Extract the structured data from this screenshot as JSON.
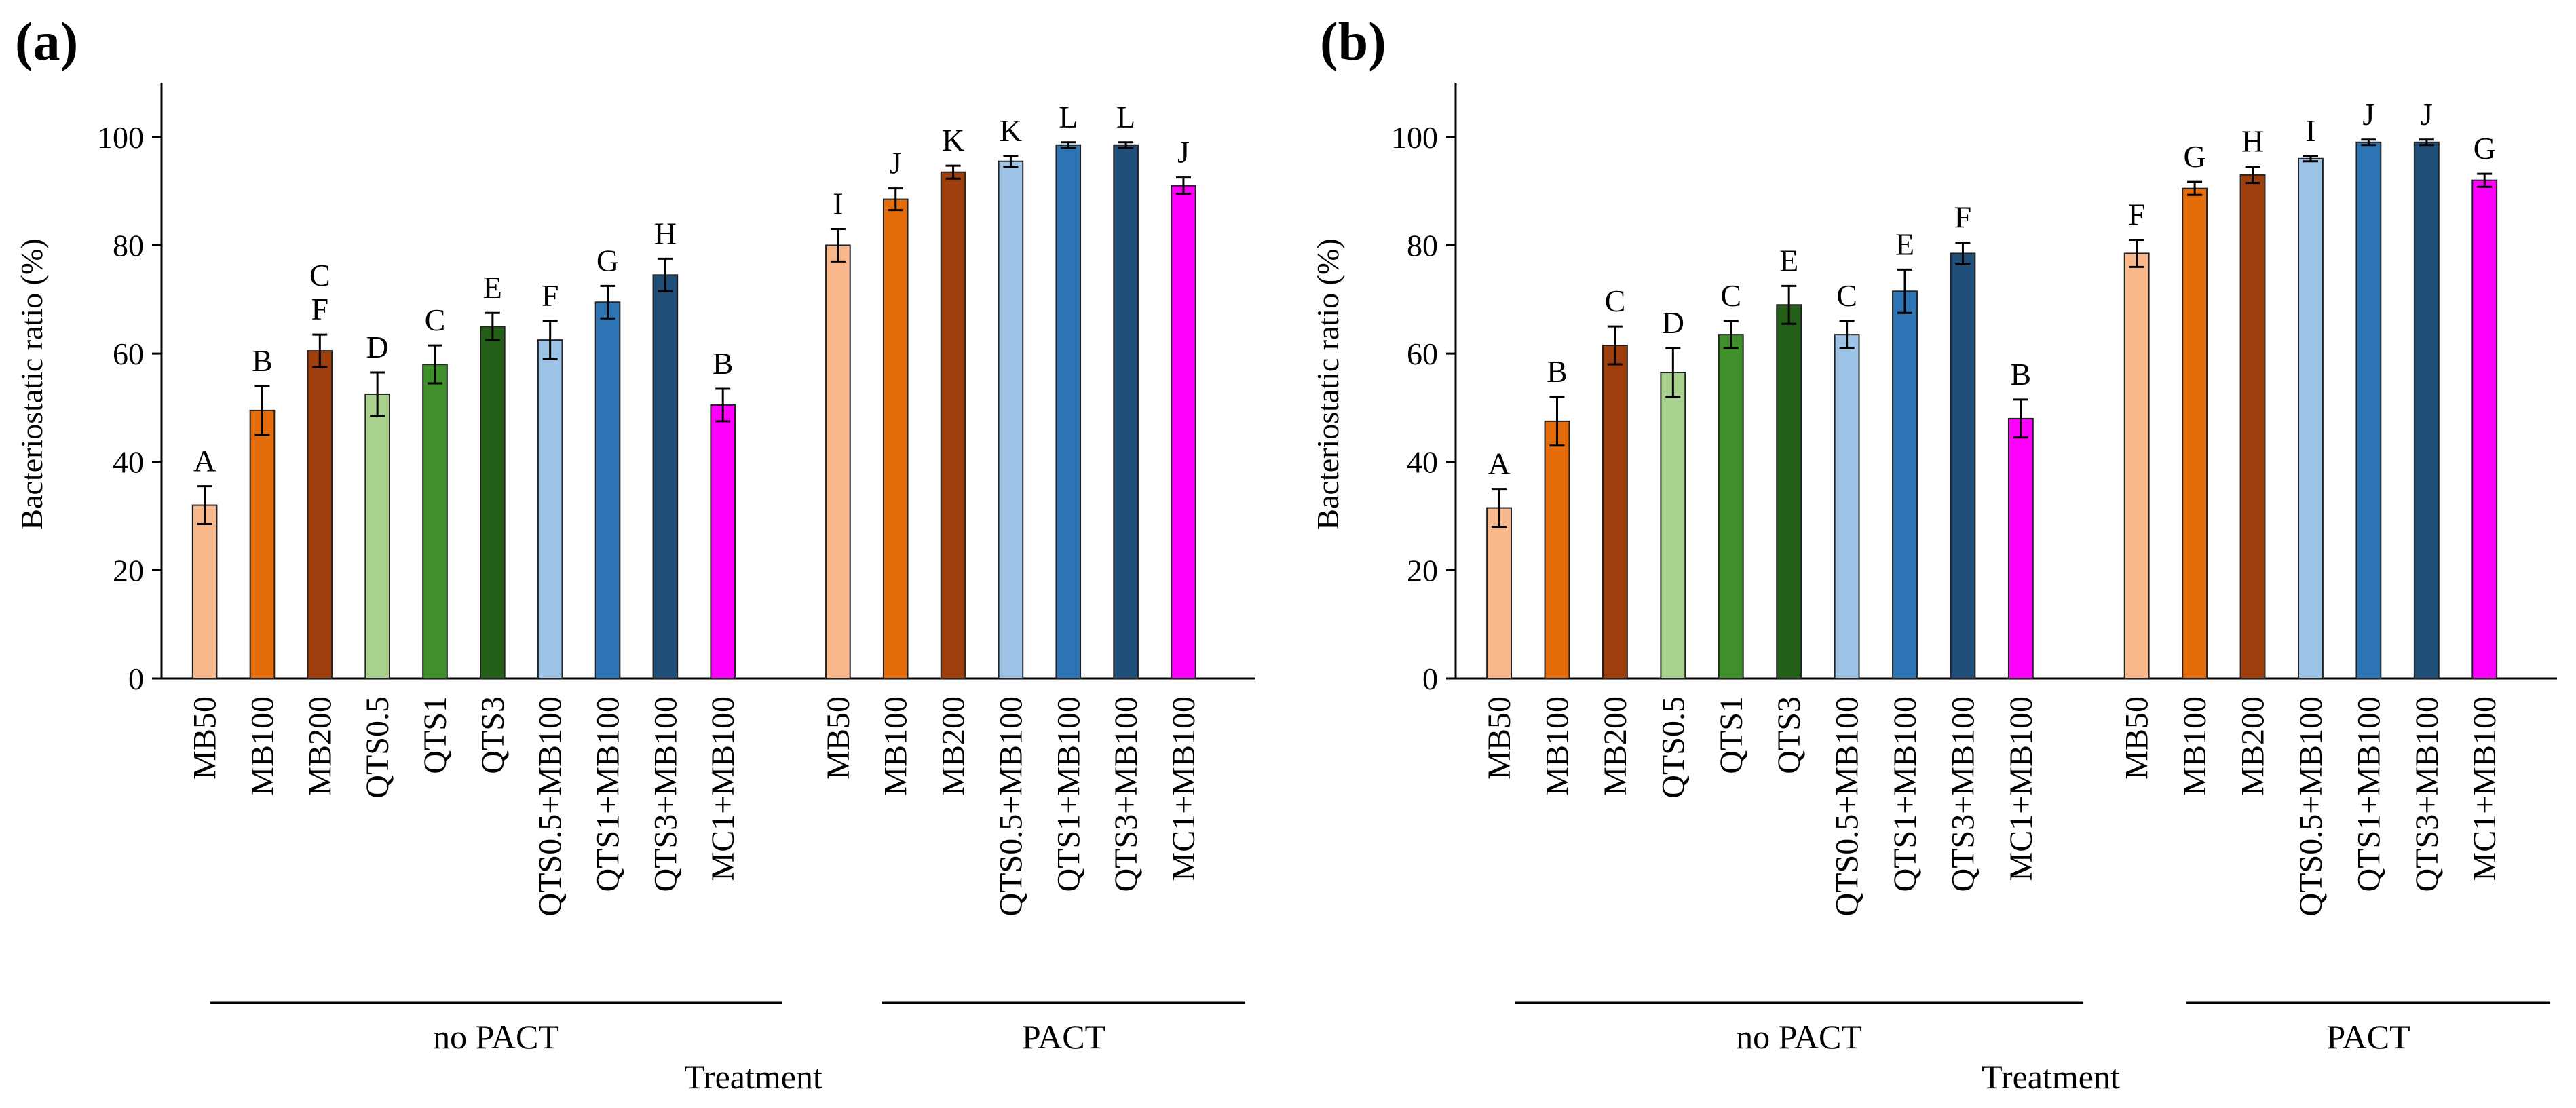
{
  "chart_data": [
    {
      "type": "bar",
      "panel_label": "(a)",
      "ylabel": "Bacteriostatic ratio (%)",
      "xlabel": "Treatment",
      "ylim": [
        0,
        110
      ],
      "yticks": [
        "0",
        "20",
        "40",
        "60",
        "80",
        "100"
      ],
      "groups": [
        {
          "label": "no PACT",
          "bars": [
            {
              "category": "MB50",
              "value": 32,
              "error": 3.5,
              "sig": "A",
              "color": "#F8B88B"
            },
            {
              "category": "MB100",
              "value": 49.5,
              "error": 4.5,
              "sig": "B",
              "color": "#E46C0A"
            },
            {
              "category": "MB200",
              "value": 60.5,
              "error": 3,
              "sig": "F",
              "sig_top": "C",
              "color": "#9E3E0D"
            },
            {
              "category": "QTS0.5",
              "value": 52.5,
              "error": 4,
              "sig": "D",
              "color": "#A9D18E"
            },
            {
              "category": "QTS1",
              "value": 58,
              "error": 3.5,
              "sig": "C",
              "color": "#3F8F2A"
            },
            {
              "category": "QTS3",
              "value": 65,
              "error": 2.5,
              "sig": "E",
              "color": "#245F1A"
            },
            {
              "category": "QTS0.5+MB100",
              "value": 62.5,
              "error": 3.5,
              "sig": "F",
              "color": "#9DC3E6"
            },
            {
              "category": "QTS1+MB100",
              "value": 69.5,
              "error": 3,
              "sig": "G",
              "color": "#2E75B6"
            },
            {
              "category": "QTS3+MB100",
              "value": 74.5,
              "error": 3,
              "sig": "H",
              "color": "#1F4E79"
            },
            {
              "category": "MC1+MB100",
              "value": 50.5,
              "error": 3,
              "sig": "B",
              "color": "#FF00FF"
            }
          ]
        },
        {
          "label": "PACT",
          "bars": [
            {
              "category": "MB50",
              "value": 80,
              "error": 3,
              "sig": "I",
              "color": "#F8B88B"
            },
            {
              "category": "MB100",
              "value": 88.5,
              "error": 2,
              "sig": "J",
              "color": "#E46C0A"
            },
            {
              "category": "MB200",
              "value": 93.5,
              "error": 1.2,
              "sig": "K",
              "color": "#9E3E0D"
            },
            {
              "category": "QTS0.5+MB100",
              "value": 95.5,
              "error": 1,
              "sig": "K",
              "color": "#9DC3E6"
            },
            {
              "category": "QTS1+MB100",
              "value": 98.5,
              "error": 0.5,
              "sig": "L",
              "color": "#2E75B6"
            },
            {
              "category": "QTS3+MB100",
              "value": 98.5,
              "error": 0.5,
              "sig": "L",
              "color": "#1F4E79"
            },
            {
              "category": "MC1+MB100",
              "value": 91,
              "error": 1.5,
              "sig": "J",
              "color": "#FF00FF"
            }
          ]
        }
      ]
    },
    {
      "type": "bar",
      "panel_label": "(b)",
      "ylabel": "Bacteriostatic ratio (%)",
      "xlabel": "Treatment",
      "ylim": [
        0,
        110
      ],
      "yticks": [
        "0",
        "20",
        "40",
        "60",
        "80",
        "100"
      ],
      "groups": [
        {
          "label": "no PACT",
          "bars": [
            {
              "category": "MB50",
              "value": 31.5,
              "error": 3.5,
              "sig": "A",
              "color": "#F8B88B"
            },
            {
              "category": "MB100",
              "value": 47.5,
              "error": 4.5,
              "sig": "B",
              "color": "#E46C0A"
            },
            {
              "category": "MB200",
              "value": 61.5,
              "error": 3.5,
              "sig": "C",
              "color": "#9E3E0D"
            },
            {
              "category": "QTS0.5",
              "value": 56.5,
              "error": 4.5,
              "sig": "D",
              "color": "#A9D18E"
            },
            {
              "category": "QTS1",
              "value": 63.5,
              "error": 2.5,
              "sig": "C",
              "color": "#3F8F2A"
            },
            {
              "category": "QTS3",
              "value": 69,
              "error": 3.5,
              "sig": "E",
              "color": "#245F1A"
            },
            {
              "category": "QTS0.5+MB100",
              "value": 63.5,
              "error": 2.5,
              "sig": "C",
              "color": "#9DC3E6"
            },
            {
              "category": "QTS1+MB100",
              "value": 71.5,
              "error": 4,
              "sig": "E",
              "color": "#2E75B6"
            },
            {
              "category": "QTS3+MB100",
              "value": 78.5,
              "error": 2,
              "sig": "F",
              "color": "#1F4E79"
            },
            {
              "category": "MC1+MB100",
              "value": 48,
              "error": 3.5,
              "sig": "B",
              "color": "#FF00FF"
            }
          ]
        },
        {
          "label": "PACT",
          "bars": [
            {
              "category": "MB50",
              "value": 78.5,
              "error": 2.5,
              "sig": "F",
              "color": "#F8B88B"
            },
            {
              "category": "MB100",
              "value": 90.5,
              "error": 1.2,
              "sig": "G",
              "color": "#E46C0A"
            },
            {
              "category": "MB200",
              "value": 93,
              "error": 1.5,
              "sig": "H",
              "color": "#9E3E0D"
            },
            {
              "category": "QTS0.5+MB100",
              "value": 96,
              "error": 0.5,
              "sig": "I",
              "color": "#9DC3E6"
            },
            {
              "category": "QTS1+MB100",
              "value": 99,
              "error": 0.5,
              "sig": "J",
              "color": "#2E75B6"
            },
            {
              "category": "QTS3+MB100",
              "value": 99,
              "error": 0.5,
              "sig": "J",
              "color": "#1F4E79"
            },
            {
              "category": "MC1+MB100",
              "value": 92,
              "error": 1.2,
              "sig": "G",
              "color": "#FF00FF"
            }
          ]
        }
      ]
    }
  ]
}
